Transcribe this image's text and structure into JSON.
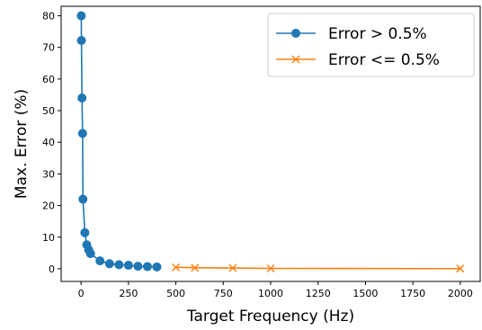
{
  "chart_data": {
    "type": "line",
    "xlabel": "Target Frequency (Hz)",
    "ylabel": "Max. Error (%)",
    "xlim": [
      -105,
      2105
    ],
    "ylim": [
      -4,
      83
    ],
    "xticks": [
      0,
      250,
      500,
      750,
      1000,
      1250,
      1500,
      1750,
      2000
    ],
    "yticks": [
      0,
      10,
      20,
      30,
      40,
      50,
      60,
      70,
      80
    ],
    "grid": false,
    "legend_position": "top-right",
    "series": [
      {
        "name": "Error > 0.5%",
        "color": "#1f77b4",
        "marker": "circle",
        "x": [
          1,
          2,
          5,
          8,
          10,
          20,
          30,
          40,
          50,
          100,
          150,
          200,
          250,
          300,
          350,
          400
        ],
        "y": [
          80,
          72.2,
          54,
          42.8,
          22,
          11.4,
          7.6,
          6.0,
          4.8,
          2.5,
          1.6,
          1.3,
          1.1,
          0.8,
          0.7,
          0.6
        ]
      },
      {
        "name": "Error <= 0.5%",
        "color": "#ff7f0e",
        "marker": "x",
        "x": [
          500,
          600,
          800,
          1000,
          2000
        ],
        "y": [
          0.45,
          0.35,
          0.25,
          0.12,
          0.05
        ]
      }
    ]
  }
}
